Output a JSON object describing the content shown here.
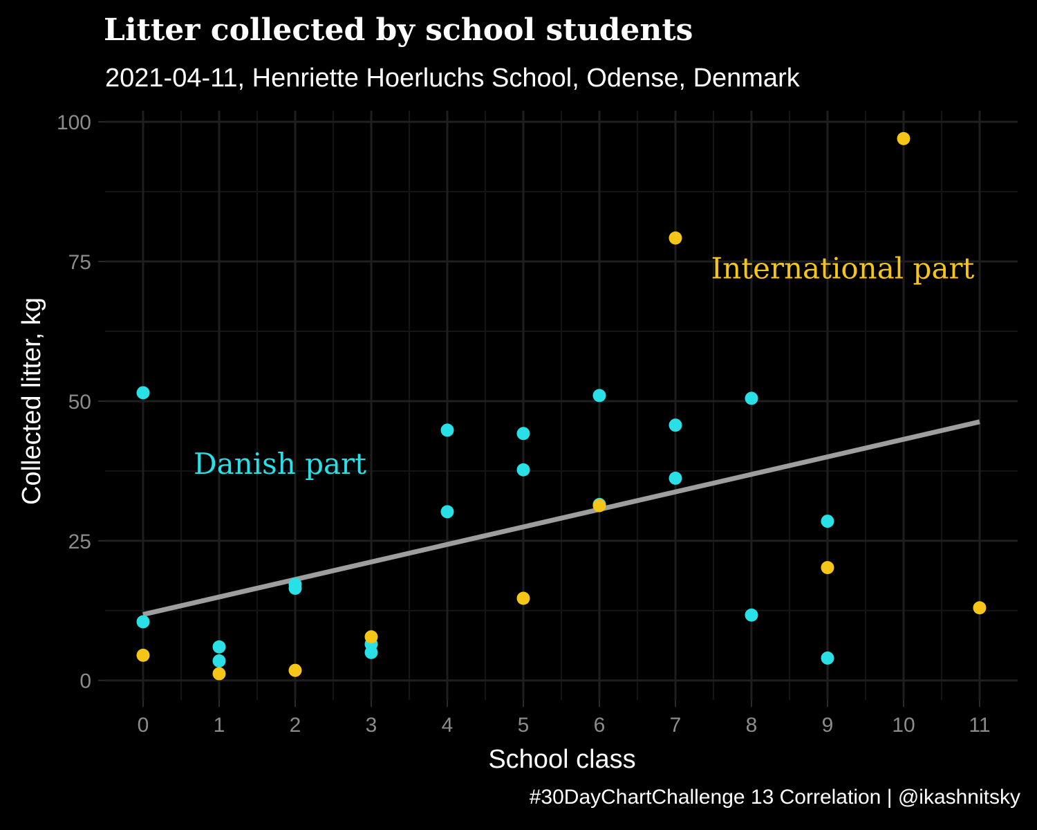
{
  "chart_data": {
    "type": "scatter",
    "title": "Litter collected by school students",
    "subtitle": "2021-04-11, Henriette Hoerluchs School, Odense, Denmark",
    "caption": "#30DayChartChallenge 13 Correlation | @ikashnitsky",
    "xlabel": "School class",
    "ylabel": "Collected litter, kg",
    "xlim": [
      -0.5,
      11.5
    ],
    "ylim": [
      -3.5,
      102
    ],
    "x_ticks": [
      0,
      1,
      2,
      3,
      4,
      5,
      6,
      7,
      8,
      9,
      10,
      11
    ],
    "y_ticks": [
      0,
      25,
      50,
      75,
      100
    ],
    "grid": true,
    "legend": "none",
    "series": [
      {
        "name": "Danish part",
        "color": "#29e0e6",
        "label_at": [
          1.8,
          37
        ],
        "points": [
          [
            0,
            51.5
          ],
          [
            0,
            10.5
          ],
          [
            1,
            6.0
          ],
          [
            1,
            3.5
          ],
          [
            2,
            17.2
          ],
          [
            2,
            16.5
          ],
          [
            3,
            6.5
          ],
          [
            3,
            5.0
          ],
          [
            4,
            44.8
          ],
          [
            4,
            30.2
          ],
          [
            5,
            44.2
          ],
          [
            5,
            37.7
          ],
          [
            6,
            51.0
          ],
          [
            6,
            31.5
          ],
          [
            7,
            45.7
          ],
          [
            7,
            36.2
          ],
          [
            8,
            50.5
          ],
          [
            8,
            11.7
          ],
          [
            9,
            28.5
          ],
          [
            9,
            4.0
          ]
        ]
      },
      {
        "name": "International part",
        "color": "#f5c518",
        "label_at": [
          9.2,
          72
        ],
        "points": [
          [
            0,
            4.5
          ],
          [
            1,
            1.2
          ],
          [
            2,
            1.8
          ],
          [
            3,
            7.8
          ],
          [
            5,
            14.7
          ],
          [
            6,
            31.3
          ],
          [
            7,
            79.2
          ],
          [
            9,
            20.2
          ],
          [
            10,
            97.0
          ],
          [
            11,
            13.0
          ]
        ]
      }
    ],
    "trend": {
      "color": "#9e9e9e",
      "from": [
        0,
        11.8
      ],
      "to": [
        11,
        46.3
      ]
    }
  }
}
